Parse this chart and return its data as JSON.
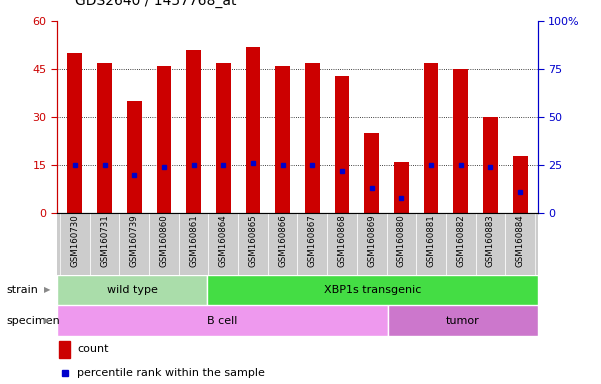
{
  "title": "GDS2640 / 1457768_at",
  "samples": [
    "GSM160730",
    "GSM160731",
    "GSM160739",
    "GSM160860",
    "GSM160861",
    "GSM160864",
    "GSM160865",
    "GSM160866",
    "GSM160867",
    "GSM160868",
    "GSM160869",
    "GSM160880",
    "GSM160881",
    "GSM160882",
    "GSM160883",
    "GSM160884"
  ],
  "counts": [
    50,
    47,
    35,
    46,
    51,
    47,
    52,
    46,
    47,
    43,
    25,
    16,
    47,
    45,
    30,
    18
  ],
  "percentile_ranks": [
    25,
    25,
    20,
    24,
    25,
    25,
    26,
    25,
    25,
    22,
    13,
    8,
    25,
    25,
    24,
    11
  ],
  "bar_color": "#cc0000",
  "percentile_color": "#0000cc",
  "left_ylim": [
    0,
    60
  ],
  "right_ylim": [
    0,
    100
  ],
  "left_yticks": [
    0,
    15,
    30,
    45,
    60
  ],
  "right_yticks": [
    0,
    25,
    50,
    75,
    100
  ],
  "right_yticklabels": [
    "0",
    "25",
    "50",
    "75",
    "100%"
  ],
  "strain_groups": [
    {
      "label": "wild type",
      "start": 0,
      "end": 5,
      "color": "#aaddaa"
    },
    {
      "label": "XBP1s transgenic",
      "start": 5,
      "end": 16,
      "color": "#44dd44"
    }
  ],
  "specimen_groups": [
    {
      "label": "B cell",
      "start": 0,
      "end": 11,
      "color": "#ee99ee"
    },
    {
      "label": "tumor",
      "start": 11,
      "end": 16,
      "color": "#cc77cc"
    }
  ],
  "legend_items": [
    {
      "color": "#cc0000",
      "label": "count"
    },
    {
      "color": "#0000cc",
      "label": "percentile rank within the sample"
    }
  ],
  "bar_width": 0.5,
  "tick_label_color": "#cc0000",
  "right_tick_color": "#0000cc",
  "title_fontsize": 10,
  "label_row_color": "#cccccc"
}
